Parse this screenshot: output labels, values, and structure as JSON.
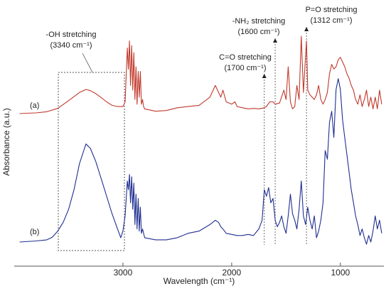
{
  "chart_data": {
    "type": "line",
    "xlabel": "Wavelength (cm⁻¹)",
    "ylabel": "Absorbance (a.u.)",
    "x_reversed": true,
    "xlim": [
      4000,
      600
    ],
    "x_ticks": [
      {
        "value": 3000,
        "label": "3000"
      },
      {
        "value": 2000,
        "label": "2000"
      },
      {
        "value": 1000,
        "label": "1000"
      }
    ],
    "y_ticks_shown": false,
    "grid": false,
    "series": [
      {
        "label": "(a)",
        "color": "#c0392b",
        "x": [
          3950,
          3800,
          3700,
          3600,
          3500,
          3400,
          3340,
          3300,
          3250,
          3200,
          3150,
          3100,
          3050,
          3000,
          2980,
          2960,
          2950,
          2940,
          2930,
          2920,
          2910,
          2900,
          2890,
          2880,
          2870,
          2860,
          2850,
          2840,
          2830,
          2820,
          2810,
          2800,
          2700,
          2600,
          2500,
          2400,
          2300,
          2200,
          2150,
          2120,
          2100,
          2080,
          2050,
          2000,
          1970,
          1950,
          1900,
          1850,
          1800,
          1750,
          1700,
          1680,
          1650,
          1620,
          1600,
          1560,
          1520,
          1500,
          1480,
          1460,
          1440,
          1420,
          1400,
          1380,
          1360,
          1340,
          1312,
          1300,
          1280,
          1260,
          1240,
          1220,
          1200,
          1180,
          1160,
          1140,
          1120,
          1100,
          1080,
          1060,
          1040,
          1020,
          1000,
          980,
          960,
          940,
          920,
          900,
          880,
          860,
          840,
          820,
          800,
          780,
          760,
          740,
          720,
          700,
          680,
          660,
          640,
          620
        ],
        "y": [
          0.0,
          0.003,
          0.008,
          0.022,
          0.055,
          0.09,
          0.103,
          0.098,
          0.085,
          0.068,
          0.05,
          0.035,
          0.03,
          0.03,
          0.05,
          0.28,
          0.19,
          0.31,
          0.12,
          0.29,
          0.1,
          0.26,
          0.06,
          0.2,
          0.04,
          0.18,
          0.07,
          0.18,
          0.04,
          0.06,
          0.03,
          0.02,
          0.01,
          0.013,
          0.025,
          0.03,
          0.035,
          0.07,
          0.12,
          0.09,
          0.07,
          0.1,
          0.05,
          0.04,
          0.05,
          0.03,
          0.025,
          0.02,
          0.022,
          0.02,
          0.025,
          0.03,
          0.05,
          0.05,
          0.04,
          0.045,
          0.1,
          0.06,
          0.2,
          0.05,
          0.02,
          0.03,
          0.12,
          0.06,
          0.33,
          0.09,
          0.31,
          0.1,
          0.08,
          0.07,
          0.06,
          0.08,
          0.12,
          0.06,
          0.04,
          0.06,
          0.09,
          0.17,
          0.21,
          0.19,
          0.2,
          0.23,
          0.24,
          0.22,
          0.2,
          0.17,
          0.15,
          0.12,
          0.1,
          0.06,
          0.04,
          0.08,
          0.03,
          0.06,
          0.1,
          0.03,
          0.07,
          0.02,
          0.07,
          0.02,
          0.1,
          0.04
        ]
      },
      {
        "label": "(b)",
        "color": "#1f2f8f",
        "x": [
          3950,
          3800,
          3700,
          3650,
          3600,
          3550,
          3500,
          3450,
          3400,
          3340,
          3300,
          3250,
          3200,
          3150,
          3100,
          3050,
          3020,
          3000,
          2980,
          2960,
          2950,
          2940,
          2930,
          2920,
          2910,
          2900,
          2890,
          2880,
          2870,
          2860,
          2850,
          2840,
          2830,
          2820,
          2800,
          2700,
          2600,
          2500,
          2400,
          2300,
          2200,
          2150,
          2120,
          2100,
          2080,
          2050,
          2000,
          1950,
          1900,
          1850,
          1800,
          1750,
          1720,
          1700,
          1680,
          1660,
          1640,
          1620,
          1600,
          1580,
          1560,
          1540,
          1520,
          1500,
          1480,
          1460,
          1440,
          1420,
          1400,
          1380,
          1360,
          1340,
          1320,
          1300,
          1280,
          1260,
          1240,
          1220,
          1200,
          1180,
          1160,
          1140,
          1120,
          1100,
          1080,
          1060,
          1040,
          1020,
          1000,
          980,
          960,
          940,
          920,
          900,
          880,
          860,
          840,
          820,
          800,
          780,
          760,
          740,
          720,
          700,
          680,
          660,
          640,
          620
        ],
        "y": [
          0.0,
          0.005,
          0.01,
          0.022,
          0.05,
          0.09,
          0.15,
          0.24,
          0.36,
          0.45,
          0.43,
          0.37,
          0.29,
          0.21,
          0.13,
          0.06,
          0.02,
          0.05,
          0.12,
          0.28,
          0.24,
          0.31,
          0.18,
          0.3,
          0.15,
          0.27,
          0.08,
          0.22,
          0.06,
          0.2,
          0.05,
          0.16,
          0.04,
          0.06,
          0.02,
          0.01,
          0.01,
          0.02,
          0.04,
          0.05,
          0.08,
          0.1,
          0.09,
          0.07,
          0.06,
          0.04,
          0.035,
          0.03,
          0.03,
          0.035,
          0.03,
          0.06,
          0.1,
          0.24,
          0.21,
          0.25,
          0.18,
          0.2,
          0.1,
          0.07,
          0.09,
          0.12,
          0.07,
          0.04,
          0.12,
          0.22,
          0.13,
          0.1,
          0.06,
          0.15,
          0.28,
          0.12,
          0.08,
          0.16,
          0.1,
          0.06,
          0.12,
          0.02,
          0.05,
          0.1,
          0.18,
          0.42,
          0.38,
          0.55,
          0.6,
          0.48,
          0.7,
          0.75,
          0.7,
          0.56,
          0.48,
          0.4,
          0.32,
          0.24,
          0.18,
          0.12,
          0.08,
          0.03,
          0.06,
          0.02,
          -0.01,
          0.03,
          0.0,
          0.05,
          0.12,
          0.06,
          0.1,
          0.04
        ]
      }
    ],
    "annotations": [
      {
        "line1": "-OH stretching",
        "line2": "(3340 cm⁻¹)"
      },
      {
        "line1": "C=O stretching",
        "line2": "(1700 cm⁻¹)",
        "x": 1700
      },
      {
        "line1": "-NH₂ stretching",
        "line2": "(1600 cm⁻¹)",
        "x": 1600
      },
      {
        "line1": "P=O stretching",
        "line2": "(1312 cm⁻¹)",
        "x": 1312
      }
    ]
  }
}
